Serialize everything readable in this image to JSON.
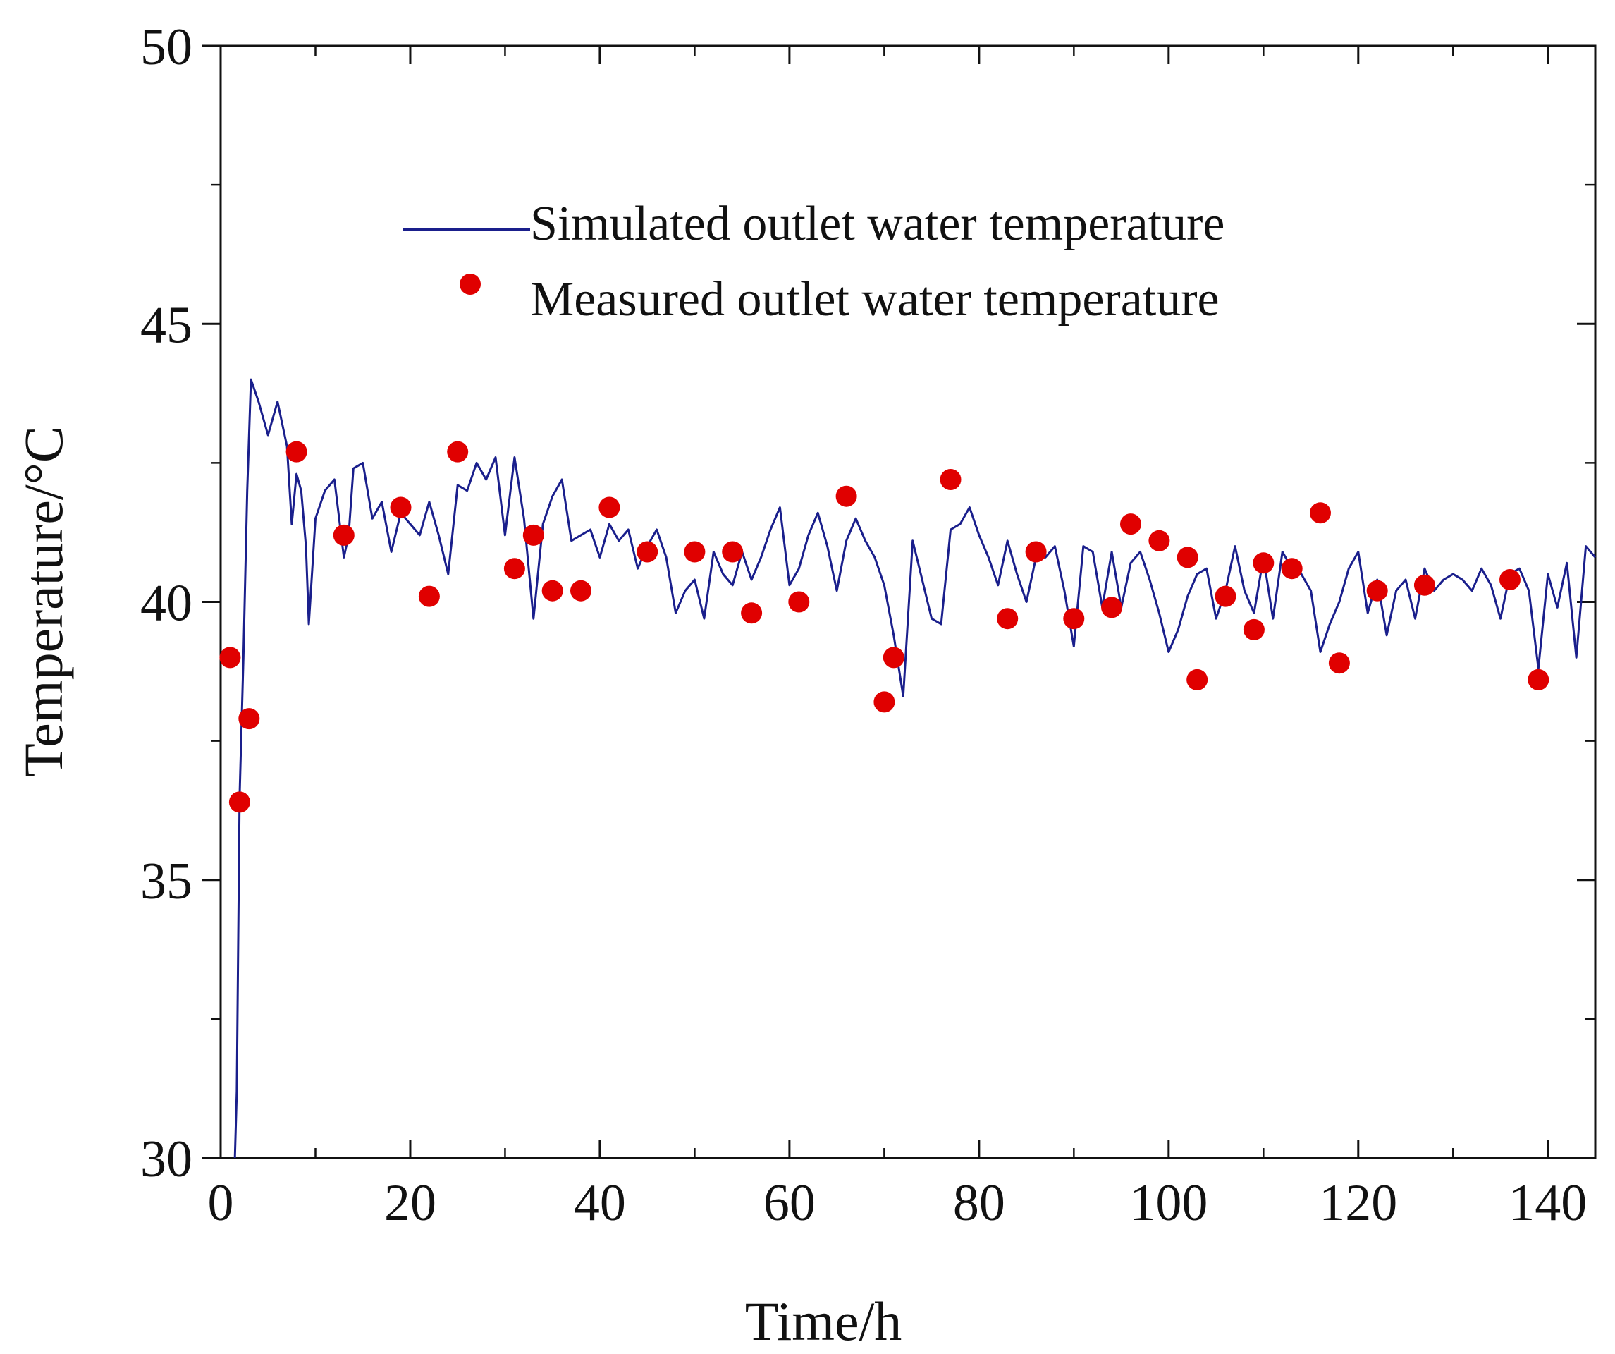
{
  "chart_data": {
    "type": "line",
    "title": "",
    "xlabel": "Time/h",
    "ylabel": "Temperature/°C",
    "xlim": [
      0,
      145
    ],
    "ylim": [
      30,
      50
    ],
    "x_ticks": [
      0,
      20,
      40,
      60,
      80,
      100,
      120,
      140
    ],
    "x_tick_labels": [
      "0",
      "20",
      "40",
      "60",
      "80",
      "100",
      "120",
      "140"
    ],
    "x_minor_ticks": [
      10,
      30,
      50,
      70,
      90,
      110,
      130
    ],
    "y_ticks": [
      30,
      35,
      40,
      45,
      50
    ],
    "y_tick_labels": [
      "30",
      "35",
      "40",
      "45",
      "50"
    ],
    "y_minor_ticks": [
      32.5,
      37.5,
      42.5,
      47.5
    ],
    "legend_position": "top-center",
    "series": [
      {
        "name": "Simulated outlet water temperature",
        "kind": "line",
        "color": "#1a1f8c",
        "points": [
          [
            1.5,
            30
          ],
          [
            1.7,
            31.2
          ],
          [
            2,
            36.5
          ],
          [
            2.4,
            39
          ],
          [
            2.8,
            42
          ],
          [
            3.2,
            44
          ],
          [
            4,
            43.6
          ],
          [
            5,
            43
          ],
          [
            6,
            43.6
          ],
          [
            7,
            42.8
          ],
          [
            7.5,
            41.4
          ],
          [
            8,
            42.3
          ],
          [
            8.5,
            42
          ],
          [
            9,
            41
          ],
          [
            9.3,
            39.6
          ],
          [
            10,
            41.5
          ],
          [
            11,
            42
          ],
          [
            12,
            42.2
          ],
          [
            13,
            40.8
          ],
          [
            13.5,
            41.2
          ],
          [
            14,
            42.4
          ],
          [
            15,
            42.5
          ],
          [
            16,
            41.5
          ],
          [
            17,
            41.8
          ],
          [
            18,
            40.9
          ],
          [
            19,
            41.6
          ],
          [
            20,
            41.4
          ],
          [
            21,
            41.2
          ],
          [
            22,
            41.8
          ],
          [
            23,
            41.2
          ],
          [
            24,
            40.5
          ],
          [
            25,
            42.1
          ],
          [
            26,
            42.0
          ],
          [
            27,
            42.5
          ],
          [
            28,
            42.2
          ],
          [
            29,
            42.6
          ],
          [
            30,
            41.2
          ],
          [
            31,
            42.6
          ],
          [
            32,
            41.5
          ],
          [
            33,
            39.7
          ],
          [
            34,
            41.4
          ],
          [
            35,
            41.9
          ],
          [
            36,
            42.2
          ],
          [
            37,
            41.1
          ],
          [
            38,
            41.2
          ],
          [
            39,
            41.3
          ],
          [
            40,
            40.8
          ],
          [
            41,
            41.4
          ],
          [
            42,
            41.1
          ],
          [
            43,
            41.3
          ],
          [
            44,
            40.6
          ],
          [
            45,
            41.0
          ],
          [
            46,
            41.3
          ],
          [
            47,
            40.8
          ],
          [
            48,
            39.8
          ],
          [
            49,
            40.2
          ],
          [
            50,
            40.4
          ],
          [
            51,
            39.7
          ],
          [
            52,
            40.9
          ],
          [
            53,
            40.5
          ],
          [
            54,
            40.3
          ],
          [
            55,
            40.9
          ],
          [
            56,
            40.4
          ],
          [
            57,
            40.8
          ],
          [
            58,
            41.3
          ],
          [
            59,
            41.7
          ],
          [
            60,
            40.3
          ],
          [
            61,
            40.6
          ],
          [
            62,
            41.2
          ],
          [
            63,
            41.6
          ],
          [
            64,
            41.0
          ],
          [
            65,
            40.2
          ],
          [
            66,
            41.1
          ],
          [
            67,
            41.5
          ],
          [
            68,
            41.1
          ],
          [
            69,
            40.8
          ],
          [
            70,
            40.3
          ],
          [
            71,
            39.4
          ],
          [
            72,
            38.3
          ],
          [
            73,
            41.1
          ],
          [
            74,
            40.4
          ],
          [
            75,
            39.7
          ],
          [
            76,
            39.6
          ],
          [
            77,
            41.3
          ],
          [
            78,
            41.4
          ],
          [
            79,
            41.7
          ],
          [
            80,
            41.2
          ],
          [
            81,
            40.8
          ],
          [
            82,
            40.3
          ],
          [
            83,
            41.1
          ],
          [
            84,
            40.5
          ],
          [
            85,
            40.0
          ],
          [
            86,
            40.8
          ],
          [
            87,
            40.8
          ],
          [
            88,
            41.0
          ],
          [
            89,
            40.2
          ],
          [
            90,
            39.2
          ],
          [
            91,
            41.0
          ],
          [
            92,
            40.9
          ],
          [
            93,
            39.9
          ],
          [
            94,
            40.9
          ],
          [
            95,
            39.9
          ],
          [
            96,
            40.7
          ],
          [
            97,
            40.9
          ],
          [
            98,
            40.4
          ],
          [
            99,
            39.8
          ],
          [
            100,
            39.1
          ],
          [
            101,
            39.5
          ],
          [
            102,
            40.1
          ],
          [
            103,
            40.5
          ],
          [
            104,
            40.6
          ],
          [
            105,
            39.7
          ],
          [
            106,
            40.2
          ],
          [
            107,
            41.0
          ],
          [
            108,
            40.2
          ],
          [
            109,
            39.8
          ],
          [
            110,
            40.8
          ],
          [
            111,
            39.7
          ],
          [
            112,
            40.9
          ],
          [
            113,
            40.6
          ],
          [
            114,
            40.5
          ],
          [
            115,
            40.2
          ],
          [
            116,
            39.1
          ],
          [
            117,
            39.6
          ],
          [
            118,
            40.0
          ],
          [
            119,
            40.6
          ],
          [
            120,
            40.9
          ],
          [
            121,
            39.8
          ],
          [
            122,
            40.4
          ],
          [
            123,
            39.4
          ],
          [
            124,
            40.2
          ],
          [
            125,
            40.4
          ],
          [
            126,
            39.7
          ],
          [
            127,
            40.6
          ],
          [
            128,
            40.2
          ],
          [
            129,
            40.4
          ],
          [
            130,
            40.5
          ],
          [
            131,
            40.4
          ],
          [
            132,
            40.2
          ],
          [
            133,
            40.6
          ],
          [
            134,
            40.3
          ],
          [
            135,
            39.7
          ],
          [
            136,
            40.5
          ],
          [
            137,
            40.6
          ],
          [
            138,
            40.2
          ],
          [
            139,
            38.8
          ],
          [
            140,
            40.5
          ],
          [
            141,
            39.9
          ],
          [
            142,
            40.7
          ],
          [
            143,
            39.0
          ],
          [
            144,
            41.0
          ],
          [
            145,
            40.8
          ]
        ]
      },
      {
        "name": "Measured outlet water temperature",
        "kind": "scatter",
        "color": "#e00000",
        "points": [
          [
            1,
            39
          ],
          [
            2,
            36.4
          ],
          [
            3,
            37.9
          ],
          [
            8,
            42.7
          ],
          [
            13,
            41.2
          ],
          [
            19,
            41.7
          ],
          [
            22,
            40.1
          ],
          [
            25,
            42.7
          ],
          [
            31,
            40.6
          ],
          [
            33,
            41.2
          ],
          [
            35,
            40.2
          ],
          [
            38,
            40.2
          ],
          [
            41,
            41.7
          ],
          [
            45,
            40.9
          ],
          [
            50,
            40.9
          ],
          [
            54,
            40.9
          ],
          [
            56,
            39.8
          ],
          [
            61,
            40
          ],
          [
            66,
            41.9
          ],
          [
            70,
            38.2
          ],
          [
            71,
            39
          ],
          [
            77,
            42.2
          ],
          [
            83,
            39.7
          ],
          [
            86,
            40.9
          ],
          [
            90,
            39.7
          ],
          [
            94,
            39.9
          ],
          [
            96,
            41.4
          ],
          [
            99,
            41.1
          ],
          [
            102,
            40.8
          ],
          [
            103,
            38.6
          ],
          [
            106,
            40.1
          ],
          [
            109,
            39.5
          ],
          [
            110,
            40.7
          ],
          [
            113,
            40.6
          ],
          [
            116,
            41.6
          ],
          [
            118,
            38.9
          ],
          [
            122,
            40.2
          ],
          [
            127,
            40.3
          ],
          [
            136,
            40.4
          ],
          [
            139,
            38.6
          ]
        ]
      }
    ]
  }
}
